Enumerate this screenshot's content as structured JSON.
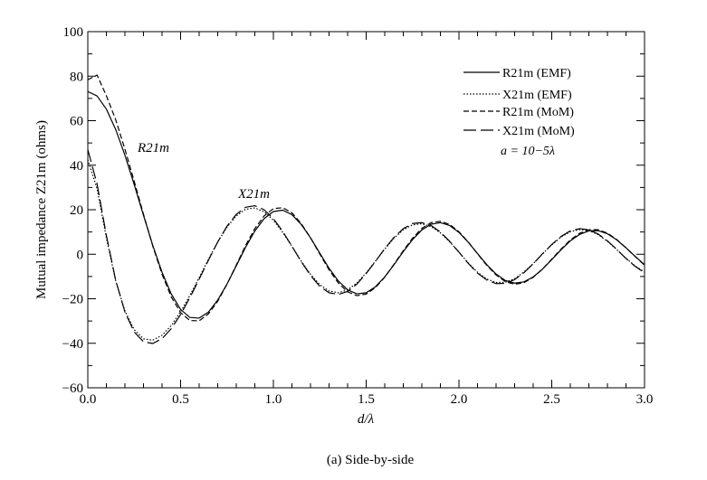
{
  "chart_data": {
    "type": "line",
    "xlabel": "d/λ",
    "ylabel": "Mutual impedance Z21m (ohms)",
    "xlim": [
      0.0,
      3.0
    ],
    "ylim": [
      -60,
      100
    ],
    "xticks": [
      "0.0",
      "0.5",
      "1.0",
      "1.5",
      "2.0",
      "2.5",
      "3.0"
    ],
    "yticks": [
      "100",
      "80",
      "60",
      "40",
      "20",
      "0",
      "−20",
      "−40",
      "−60"
    ],
    "legend_position": "top-right",
    "legend_note": "a = 10−5λ",
    "annotations": [
      "R21m",
      "X21m"
    ],
    "caption": "(a) Side-by-side",
    "series": [
      {
        "name": "R21m (EMF)",
        "style": "solid",
        "x": [
          0.0,
          0.05,
          0.1,
          0.15,
          0.2,
          0.25,
          0.3,
          0.35,
          0.4,
          0.45,
          0.5,
          0.55,
          0.6,
          0.65,
          0.7,
          0.75,
          0.8,
          0.85,
          0.9,
          0.95,
          1.0,
          1.05,
          1.1,
          1.15,
          1.2,
          1.25,
          1.3,
          1.35,
          1.4,
          1.45,
          1.5,
          1.55,
          1.6,
          1.65,
          1.7,
          1.75,
          1.8,
          1.85,
          1.9,
          1.95,
          2.0,
          2.05,
          2.1,
          2.15,
          2.2,
          2.25,
          2.3,
          2.35,
          2.4,
          2.45,
          2.5,
          2.55,
          2.6,
          2.65,
          2.7,
          2.75,
          2.8,
          2.85,
          2.9,
          2.95,
          3.0
        ],
        "values": [
          73.1,
          71.1,
          65.2,
          56.1,
          44.5,
          31.3,
          17.5,
          4.0,
          -8.1,
          -17.9,
          -24.8,
          -28.4,
          -28.7,
          -26.0,
          -20.6,
          -13.4,
          -5.2,
          3.1,
          10.4,
          16.0,
          19.2,
          19.8,
          17.8,
          13.4,
          7.4,
          0.5,
          -6.3,
          -12.0,
          -16.0,
          -17.8,
          -17.3,
          -14.6,
          -10.2,
          -4.7,
          1.2,
          6.6,
          10.9,
          13.5,
          14.2,
          12.9,
          9.8,
          5.4,
          0.3,
          -4.7,
          -8.9,
          -11.8,
          -13.0,
          -12.4,
          -10.2,
          -6.7,
          -2.4,
          2.0,
          6.0,
          8.9,
          10.5,
          10.6,
          9.2,
          6.5,
          2.9,
          -1.0,
          -4.7
        ]
      },
      {
        "name": "X21m (EMF)",
        "style": "dotted",
        "x": [
          0.0,
          0.05,
          0.1,
          0.15,
          0.2,
          0.25,
          0.3,
          0.35,
          0.4,
          0.45,
          0.5,
          0.55,
          0.6,
          0.65,
          0.7,
          0.75,
          0.8,
          0.85,
          0.9,
          0.95,
          1.0,
          1.05,
          1.1,
          1.15,
          1.2,
          1.25,
          1.3,
          1.35,
          1.4,
          1.45,
          1.5,
          1.55,
          1.6,
          1.65,
          1.7,
          1.75,
          1.8,
          1.85,
          1.9,
          1.95,
          2.0,
          2.05,
          2.1,
          2.15,
          2.2,
          2.25,
          2.3,
          2.35,
          2.4,
          2.45,
          2.5,
          2.55,
          2.6,
          2.65,
          2.7,
          2.75,
          2.8,
          2.85,
          2.9,
          2.95,
          3.0
        ],
        "values": [
          42.5,
          29.4,
          7.4,
          -11.9,
          -25.5,
          -33.9,
          -38.0,
          -38.6,
          -36.4,
          -32.0,
          -25.8,
          -18.5,
          -10.5,
          -2.3,
          5.5,
          12.2,
          17.2,
          20.2,
          20.8,
          19.1,
          15.3,
          9.9,
          3.5,
          -3.1,
          -9.0,
          -13.7,
          -16.5,
          -17.3,
          -16.0,
          -12.9,
          -8.4,
          -3.1,
          2.3,
          7.2,
          11.0,
          13.2,
          13.7,
          12.4,
          9.6,
          5.6,
          0.9,
          -3.9,
          -8.1,
          -11.1,
          -12.7,
          -12.6,
          -11.0,
          -8.0,
          -4.2,
          0.1,
          4.2,
          7.7,
          10.1,
          11.1,
          10.6,
          8.8,
          5.8,
          2.1,
          -1.8,
          -5.3,
          -8.0
        ]
      },
      {
        "name": "R21m (MoM)",
        "style": "dashed",
        "x": [
          0.0,
          0.05,
          0.1,
          0.15,
          0.2,
          0.25,
          0.3,
          0.35,
          0.4,
          0.45,
          0.5,
          0.55,
          0.6,
          0.65,
          0.7,
          0.75,
          0.8,
          0.85,
          0.9,
          0.95,
          1.0,
          1.05,
          1.1,
          1.15,
          1.2,
          1.25,
          1.3,
          1.35,
          1.4,
          1.45,
          1.5,
          1.55,
          1.6,
          1.65,
          1.7,
          1.75,
          1.8,
          1.85,
          1.9,
          1.95,
          2.0,
          2.05,
          2.1,
          2.15,
          2.2,
          2.25,
          2.3,
          2.35,
          2.4,
          2.45,
          2.5,
          2.55,
          2.6,
          2.65,
          2.7,
          2.75,
          2.8,
          2.85,
          2.9,
          2.95,
          3.0
        ],
        "values": [
          78.4,
          80.5,
          71.2,
          60.5,
          47.2,
          32.8,
          18.0,
          3.7,
          -9.0,
          -19.2,
          -26.2,
          -29.8,
          -29.9,
          -26.8,
          -21.1,
          -13.5,
          -4.9,
          3.9,
          11.5,
          17.2,
          20.5,
          20.9,
          18.6,
          13.8,
          7.4,
          0.1,
          -7.0,
          -12.9,
          -16.9,
          -18.6,
          -17.9,
          -15.0,
          -10.3,
          -4.5,
          1.6,
          7.2,
          11.6,
          14.2,
          14.8,
          13.4,
          10.1,
          5.5,
          0.2,
          -5.0,
          -9.3,
          -12.3,
          -13.5,
          -12.8,
          -10.4,
          -6.7,
          -2.2,
          2.3,
          6.4,
          9.4,
          11.0,
          11.0,
          9.5,
          6.6,
          2.9,
          -1.1,
          -4.9
        ]
      },
      {
        "name": "X21m (MoM)",
        "style": "long-dash",
        "x": [
          0.0,
          0.05,
          0.1,
          0.15,
          0.2,
          0.25,
          0.3,
          0.35,
          0.4,
          0.45,
          0.5,
          0.55,
          0.6,
          0.65,
          0.7,
          0.75,
          0.8,
          0.85,
          0.9,
          0.95,
          1.0,
          1.05,
          1.1,
          1.15,
          1.2,
          1.25,
          1.3,
          1.35,
          1.4,
          1.45,
          1.5,
          1.55,
          1.6,
          1.65,
          1.7,
          1.75,
          1.8,
          1.85,
          1.9,
          1.95,
          2.0,
          2.05,
          2.1,
          2.15,
          2.2,
          2.25,
          2.3,
          2.35,
          2.4,
          2.45,
          2.5,
          2.55,
          2.6,
          2.65,
          2.7,
          2.75,
          2.8,
          2.85,
          2.9,
          2.95,
          3.0
        ],
        "values": [
          47.0,
          31.5,
          8.5,
          -11.6,
          -26.0,
          -34.9,
          -39.3,
          -40.1,
          -37.9,
          -33.4,
          -27.1,
          -19.5,
          -11.2,
          -2.7,
          5.5,
          12.6,
          17.9,
          21.1,
          21.8,
          20.0,
          16.0,
          10.3,
          3.6,
          -3.3,
          -9.5,
          -14.4,
          -17.3,
          -18.1,
          -16.7,
          -13.4,
          -8.7,
          -3.2,
          2.5,
          7.6,
          11.5,
          13.8,
          14.2,
          12.9,
          10.0,
          5.8,
          0.9,
          -4.1,
          -8.5,
          -11.6,
          -13.2,
          -13.1,
          -11.4,
          -8.3,
          -4.3,
          0.2,
          4.4,
          8.0,
          10.5,
          11.5,
          11.0,
          9.1,
          6.0,
          2.2,
          -1.9,
          -5.5,
          -8.3
        ]
      }
    ]
  }
}
